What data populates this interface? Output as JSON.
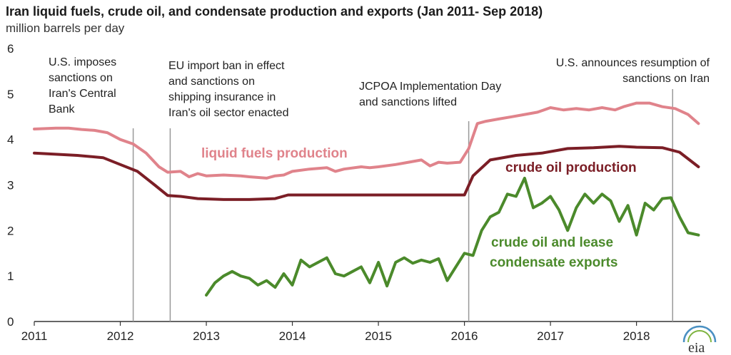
{
  "chart_data": {
    "type": "line",
    "title": "Iran liquid fuels, crude oil, and condensate production and exports (Jan 2011- Sep 2018)",
    "ylabel": "million barrels per day",
    "xlabel": "",
    "xlim": [
      2011.0,
      2018.75
    ],
    "ylim": [
      0,
      6
    ],
    "yticks": [
      "0",
      "1",
      "2",
      "3",
      "4",
      "5",
      "6"
    ],
    "xticks": [
      "2011",
      "2012",
      "2013",
      "2014",
      "2015",
      "2016",
      "2017",
      "2018"
    ],
    "grid": false,
    "colors": {
      "liquid": "#e0838b",
      "crude": "#7b1e26",
      "exports": "#4b8a2b",
      "vline": "#999999",
      "axis": "#333333"
    },
    "series": [
      {
        "name": "liquid fuels production",
        "key": "liquid",
        "x": [
          2011.0,
          2011.25,
          2011.4,
          2011.55,
          2011.7,
          2011.85,
          2012.0,
          2012.15,
          2012.3,
          2012.45,
          2012.55,
          2012.7,
          2012.8,
          2012.9,
          2013.0,
          2013.2,
          2013.4,
          2013.5,
          2013.7,
          2013.8,
          2013.9,
          2014.0,
          2014.2,
          2014.4,
          2014.5,
          2014.6,
          2014.8,
          2014.9,
          2015.0,
          2015.2,
          2015.35,
          2015.5,
          2015.6,
          2015.7,
          2015.8,
          2015.95,
          2016.05,
          2016.15,
          2016.25,
          2016.4,
          2016.55,
          2016.7,
          2016.85,
          2017.0,
          2017.15,
          2017.3,
          2017.45,
          2017.6,
          2017.75,
          2017.85,
          2018.0,
          2018.15,
          2018.3,
          2018.45,
          2018.6,
          2018.72
        ],
        "values": [
          4.23,
          4.25,
          4.25,
          4.22,
          4.2,
          4.15,
          4.0,
          3.9,
          3.7,
          3.4,
          3.28,
          3.3,
          3.18,
          3.25,
          3.2,
          3.22,
          3.2,
          3.18,
          3.15,
          3.2,
          3.22,
          3.3,
          3.35,
          3.38,
          3.3,
          3.35,
          3.4,
          3.38,
          3.4,
          3.45,
          3.5,
          3.55,
          3.42,
          3.5,
          3.48,
          3.5,
          3.8,
          4.35,
          4.4,
          4.45,
          4.5,
          4.55,
          4.6,
          4.7,
          4.65,
          4.68,
          4.65,
          4.7,
          4.65,
          4.72,
          4.8,
          4.8,
          4.72,
          4.68,
          4.55,
          4.35
        ]
      },
      {
        "name": "crude oil production",
        "key": "crude",
        "x": [
          2011.0,
          2011.5,
          2011.8,
          2012.0,
          2012.2,
          2012.4,
          2012.55,
          2012.7,
          2012.9,
          2013.2,
          2013.5,
          2013.8,
          2013.95,
          2014.1,
          2014.5,
          2015.0,
          2015.5,
          2015.9,
          2016.0,
          2016.1,
          2016.3,
          2016.6,
          2016.9,
          2017.2,
          2017.5,
          2017.8,
          2018.0,
          2018.3,
          2018.5,
          2018.72
        ],
        "values": [
          3.7,
          3.65,
          3.6,
          3.45,
          3.3,
          3.0,
          2.77,
          2.75,
          2.7,
          2.68,
          2.68,
          2.7,
          2.78,
          2.78,
          2.78,
          2.78,
          2.78,
          2.78,
          2.78,
          3.2,
          3.55,
          3.65,
          3.7,
          3.8,
          3.82,
          3.85,
          3.83,
          3.82,
          3.72,
          3.4
        ]
      },
      {
        "name": "crude oil and lease condensate exports",
        "key": "exports",
        "x": [
          2013.0,
          2013.1,
          2013.2,
          2013.3,
          2013.4,
          2013.5,
          2013.6,
          2013.7,
          2013.8,
          2013.9,
          2014.0,
          2014.1,
          2014.2,
          2014.3,
          2014.4,
          2014.5,
          2014.6,
          2014.7,
          2014.8,
          2014.9,
          2015.0,
          2015.1,
          2015.2,
          2015.3,
          2015.4,
          2015.5,
          2015.6,
          2015.7,
          2015.8,
          2015.9,
          2016.0,
          2016.1,
          2016.2,
          2016.3,
          2016.4,
          2016.5,
          2016.6,
          2016.7,
          2016.8,
          2016.9,
          2017.0,
          2017.1,
          2017.2,
          2017.3,
          2017.4,
          2017.5,
          2017.6,
          2017.7,
          2017.8,
          2017.9,
          2018.0,
          2018.1,
          2018.2,
          2018.3,
          2018.4,
          2018.5,
          2018.6,
          2018.72
        ],
        "values": [
          0.58,
          0.85,
          1.0,
          1.1,
          1.0,
          0.95,
          0.8,
          0.9,
          0.75,
          1.05,
          0.8,
          1.35,
          1.2,
          1.3,
          1.4,
          1.05,
          1.0,
          1.1,
          1.2,
          0.85,
          1.3,
          0.78,
          1.3,
          1.4,
          1.28,
          1.35,
          1.3,
          1.38,
          0.9,
          1.2,
          1.5,
          1.45,
          2.0,
          2.3,
          2.4,
          2.8,
          2.75,
          3.15,
          2.5,
          2.6,
          2.75,
          2.45,
          2.0,
          2.5,
          2.8,
          2.6,
          2.8,
          2.65,
          2.2,
          2.55,
          1.9,
          2.6,
          2.45,
          2.7,
          2.72,
          2.3,
          1.95,
          1.9
        ]
      }
    ],
    "series_labels": {
      "liquid": "liquid fuels production",
      "crude": "crude oil production",
      "exports_line1": "crude oil and lease",
      "exports_line2": "condensate exports"
    },
    "events": [
      {
        "x": 2012.15,
        "lines": [
          "U.S. imposes",
          "sanctions on",
          "Iran's Central",
          "Bank"
        ]
      },
      {
        "x": 2012.58,
        "lines": [
          "EU import ban in effect",
          "and sanctions on",
          "shipping insurance in",
          "Iran's oil sector enacted"
        ]
      },
      {
        "x": 2016.05,
        "lines": [
          "JCPOA Implementation Day",
          "and  sanctions lifted"
        ]
      },
      {
        "x": 2018.42,
        "lines": [
          "U.S. announces resumption of",
          "sanctions on Iran"
        ]
      }
    ]
  },
  "branding": {
    "logo_text": "eia"
  }
}
